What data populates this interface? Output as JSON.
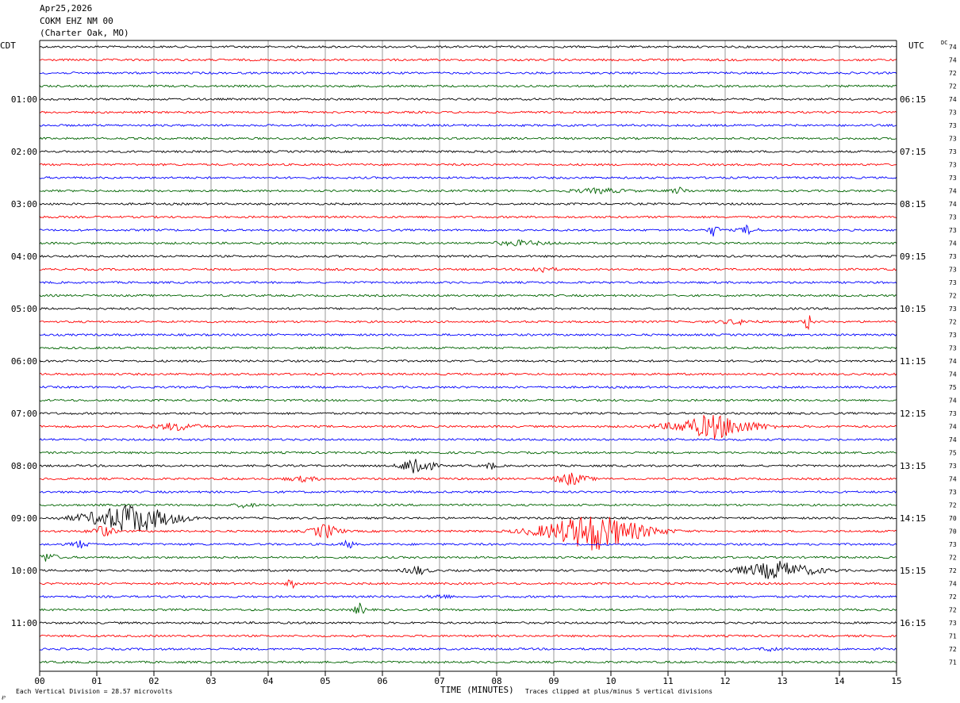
{
  "header": {
    "date": "Apr25,2026",
    "station": "COKM EHZ NM 00",
    "location": "(Charter Oak, MO)"
  },
  "left_tz": "CDT",
  "right_tz": "UTC",
  "dc_label": "DC",
  "footer": {
    "mark": "℘",
    "scale_note": "Each Vertical Division =   28.57 microvolts",
    "xlabel": "TIME (MINUTES)",
    "clip_note": "Traces clipped at plus/minus 5 vertical divisions"
  },
  "colors": [
    "#000000",
    "#ff0000",
    "#0000ff",
    "#006400"
  ],
  "chart_data": {
    "type": "line",
    "title": "COKM EHZ NM 00 (Charter Oak, MO) Apr25,2026",
    "xlabel": "TIME (MINUTES)",
    "x_range": [
      0,
      15
    ],
    "x_ticks": [
      "00",
      "01",
      "02",
      "03",
      "04",
      "05",
      "06",
      "07",
      "08",
      "09",
      "10",
      "11",
      "12",
      "13",
      "14",
      "15"
    ],
    "trace_count": 48,
    "traces_per_hour": 4,
    "left_hour_labels": [
      {
        "trace": 4,
        "label": "01:00"
      },
      {
        "trace": 8,
        "label": "02:00"
      },
      {
        "trace": 12,
        "label": "03:00"
      },
      {
        "trace": 16,
        "label": "04:00"
      },
      {
        "trace": 20,
        "label": "05:00"
      },
      {
        "trace": 24,
        "label": "06:00"
      },
      {
        "trace": 28,
        "label": "07:00"
      },
      {
        "trace": 32,
        "label": "08:00"
      },
      {
        "trace": 36,
        "label": "09:00"
      },
      {
        "trace": 40,
        "label": "10:00"
      },
      {
        "trace": 44,
        "label": "11:00"
      }
    ],
    "right_hour_labels": [
      {
        "trace": 4,
        "label": "06:15"
      },
      {
        "trace": 8,
        "label": "07:15"
      },
      {
        "trace": 12,
        "label": "08:15"
      },
      {
        "trace": 16,
        "label": "09:15"
      },
      {
        "trace": 20,
        "label": "10:15"
      },
      {
        "trace": 24,
        "label": "11:15"
      },
      {
        "trace": 28,
        "label": "12:15"
      },
      {
        "trace": 32,
        "label": "13:15"
      },
      {
        "trace": 36,
        "label": "14:15"
      },
      {
        "trace": 40,
        "label": "15:15"
      },
      {
        "trace": 44,
        "label": "16:15"
      }
    ],
    "dc_offsets": [
      74,
      74,
      72,
      72,
      74,
      73,
      73,
      73,
      73,
      73,
      73,
      74,
      74,
      73,
      73,
      74,
      73,
      73,
      73,
      72,
      73,
      72,
      73,
      73,
      74,
      74,
      75,
      74,
      73,
      74,
      74,
      75,
      73,
      74,
      73,
      72,
      70,
      70,
      73,
      72,
      72,
      74,
      72,
      72,
      73,
      71,
      72,
      71
    ],
    "events": [
      {
        "trace": 14,
        "minute": 11.8,
        "amp": 8,
        "dur": 0.2
      },
      {
        "trace": 14,
        "minute": 12.4,
        "amp": 6,
        "dur": 0.3
      },
      {
        "trace": 15,
        "minute": 8.4,
        "amp": 3,
        "dur": 1.0
      },
      {
        "trace": 11,
        "minute": 9.8,
        "amp": 3,
        "dur": 1.0
      },
      {
        "trace": 11,
        "minute": 11.2,
        "amp": 4,
        "dur": 0.3
      },
      {
        "trace": 17,
        "minute": 8.8,
        "amp": 4,
        "dur": 0.4
      },
      {
        "trace": 21,
        "minute": 13.45,
        "amp": 12,
        "dur": 0.15
      },
      {
        "trace": 21,
        "minute": 12.2,
        "amp": 3,
        "dur": 0.6
      },
      {
        "trace": 29,
        "minute": 2.4,
        "amp": 5,
        "dur": 0.8
      },
      {
        "trace": 29,
        "minute": 11.8,
        "amp": 16,
        "dur": 1.5
      },
      {
        "trace": 32,
        "minute": 6.6,
        "amp": 16,
        "dur": 0.5
      },
      {
        "trace": 32,
        "minute": 7.9,
        "amp": 5,
        "dur": 0.2
      },
      {
        "trace": 33,
        "minute": 9.3,
        "amp": 8,
        "dur": 0.6
      },
      {
        "trace": 33,
        "minute": 4.6,
        "amp": 3,
        "dur": 0.6
      },
      {
        "trace": 35,
        "minute": 3.6,
        "amp": 4,
        "dur": 0.3
      },
      {
        "trace": 36,
        "minute": 1.6,
        "amp": 20,
        "dur": 1.6
      },
      {
        "trace": 37,
        "minute": 1.1,
        "amp": 8,
        "dur": 0.4
      },
      {
        "trace": 37,
        "minute": 5.0,
        "amp": 10,
        "dur": 0.5
      },
      {
        "trace": 37,
        "minute": 9.7,
        "amp": 26,
        "dur": 1.8
      },
      {
        "trace": 38,
        "minute": 0.7,
        "amp": 5,
        "dur": 0.3
      },
      {
        "trace": 38,
        "minute": 5.4,
        "amp": 6,
        "dur": 0.2
      },
      {
        "trace": 39,
        "minute": 0.15,
        "amp": 7,
        "dur": 0.3
      },
      {
        "trace": 40,
        "minute": 6.6,
        "amp": 6,
        "dur": 0.4
      },
      {
        "trace": 40,
        "minute": 12.9,
        "amp": 12,
        "dur": 1.4
      },
      {
        "trace": 41,
        "minute": 4.4,
        "amp": 8,
        "dur": 0.15
      },
      {
        "trace": 42,
        "minute": 7.0,
        "amp": 3,
        "dur": 0.4
      },
      {
        "trace": 43,
        "minute": 5.6,
        "amp": 8,
        "dur": 0.2
      },
      {
        "trace": 46,
        "minute": 12.8,
        "amp": 3,
        "dur": 0.3
      }
    ]
  }
}
